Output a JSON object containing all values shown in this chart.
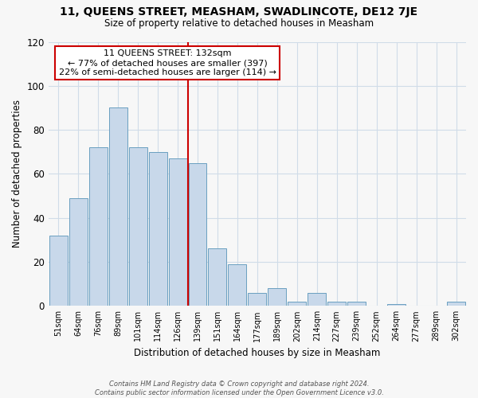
{
  "title": "11, QUEENS STREET, MEASHAM, SWADLINCOTE, DE12 7JE",
  "subtitle": "Size of property relative to detached houses in Measham",
  "xlabel": "Distribution of detached houses by size in Measham",
  "ylabel": "Number of detached properties",
  "bar_color": "#c8d8ea",
  "bar_edge_color": "#6a9fc0",
  "categories": [
    "51sqm",
    "64sqm",
    "76sqm",
    "89sqm",
    "101sqm",
    "114sqm",
    "126sqm",
    "139sqm",
    "151sqm",
    "164sqm",
    "177sqm",
    "189sqm",
    "202sqm",
    "214sqm",
    "227sqm",
    "239sqm",
    "252sqm",
    "264sqm",
    "277sqm",
    "289sqm",
    "302sqm"
  ],
  "values": [
    32,
    49,
    72,
    90,
    72,
    70,
    67,
    65,
    26,
    19,
    6,
    8,
    2,
    6,
    2,
    2,
    0,
    1,
    0,
    0,
    2
  ],
  "vline_color": "#cc0000",
  "annotation_title": "11 QUEENS STREET: 132sqm",
  "annotation_line1": "← 77% of detached houses are smaller (397)",
  "annotation_line2": "22% of semi-detached houses are larger (114) →",
  "annotation_box_color": "#ffffff",
  "annotation_box_edge_color": "#cc0000",
  "ylim": [
    0,
    120
  ],
  "yticks": [
    0,
    20,
    40,
    60,
    80,
    100,
    120
  ],
  "footer_line1": "Contains HM Land Registry data © Crown copyright and database right 2024.",
  "footer_line2": "Contains public sector information licensed under the Open Government Licence v3.0.",
  "background_color": "#f7f7f7",
  "grid_color": "#d0dce8"
}
